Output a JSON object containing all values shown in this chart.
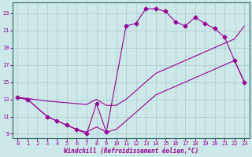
{
  "xlabel": "Windchill (Refroidissement éolien,°C)",
  "bg_color": "#cce8e8",
  "line_color": "#990099",
  "grid_color": "#aacccc",
  "spine_color": "#336666",
  "line1_x": [
    0,
    1,
    3,
    4,
    5,
    6,
    7,
    8,
    9,
    11,
    12,
    13,
    14,
    15,
    16,
    17,
    18,
    19,
    20,
    21,
    22,
    23
  ],
  "line1_y": [
    13.2,
    13.0,
    11.0,
    10.5,
    10.0,
    9.5,
    9.0,
    12.5,
    9.2,
    21.5,
    21.8,
    23.5,
    23.5,
    23.2,
    22.0,
    21.5,
    22.5,
    21.8,
    21.2,
    20.2,
    17.5,
    15.0
  ],
  "line2_x": [
    0,
    1,
    3,
    4,
    5,
    6,
    7,
    8,
    9,
    10,
    11,
    12,
    13,
    14,
    15,
    16,
    17,
    18,
    19,
    20,
    21,
    22,
    23
  ],
  "line2_y": [
    13.2,
    13.1,
    12.8,
    12.7,
    12.6,
    12.5,
    12.4,
    13.0,
    12.3,
    12.3,
    13.0,
    14.0,
    15.0,
    16.0,
    16.5,
    17.0,
    17.5,
    18.0,
    18.5,
    19.0,
    19.5,
    20.0,
    21.5
  ],
  "line3_x": [
    0,
    1,
    3,
    4,
    5,
    6,
    7,
    8,
    9,
    10,
    11,
    12,
    13,
    14,
    15,
    16,
    17,
    18,
    19,
    20,
    21,
    22,
    23
  ],
  "line3_y": [
    13.2,
    13.0,
    11.0,
    10.5,
    10.0,
    9.5,
    9.2,
    9.8,
    9.2,
    9.5,
    10.5,
    11.5,
    12.5,
    13.5,
    14.0,
    14.5,
    15.0,
    15.5,
    16.0,
    16.5,
    17.0,
    17.5,
    15.0
  ],
  "xlim": [
    -0.5,
    23.5
  ],
  "ylim": [
    8.5,
    24.2
  ],
  "yticks": [
    9,
    11,
    13,
    15,
    17,
    19,
    21,
    23
  ],
  "xticks": [
    0,
    1,
    2,
    3,
    4,
    5,
    6,
    7,
    8,
    9,
    10,
    11,
    12,
    13,
    14,
    15,
    16,
    17,
    18,
    19,
    20,
    21,
    22,
    23
  ],
  "figsize": [
    3.2,
    2.0
  ],
  "dpi": 100,
  "lw": 0.8,
  "ms": 2.5
}
